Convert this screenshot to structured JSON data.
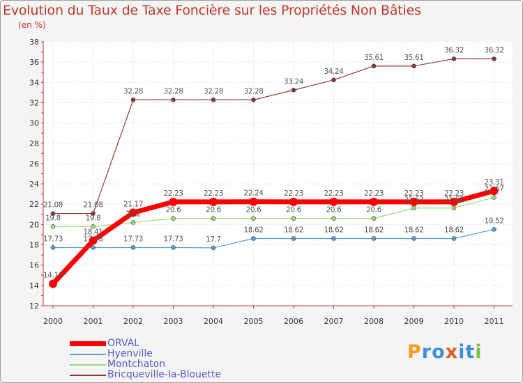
{
  "title": "Evolution du Taux de Taxe Foncière sur les Propriétés Non Bâties",
  "unit_label": "(en %)",
  "logo": "Proxiti",
  "chart_data": {
    "type": "line",
    "title": "Evolution du Taux de Taxe Foncière sur les Propriétés Non Bâties",
    "ylabel": "(en %)",
    "xlabel": "",
    "ylim": [
      12,
      38
    ],
    "yticks": [
      12,
      14,
      16,
      18,
      20,
      22,
      24,
      26,
      28,
      30,
      32,
      34,
      36,
      38
    ],
    "categories": [
      "2000",
      "2001",
      "2002",
      "2003",
      "2004",
      "2005",
      "2006",
      "2007",
      "2008",
      "2009",
      "2010",
      "2011"
    ],
    "grid": true,
    "series": [
      {
        "name": "ORVAL",
        "color": "#ff0000",
        "values": [
          14.16,
          18.41,
          21.17,
          22.23,
          22.23,
          22.24,
          22.23,
          22.23,
          22.23,
          22.23,
          22.23,
          23.31
        ],
        "labels": [
          "14.16",
          "18.41",
          "21.17",
          "22.23",
          "22.23",
          "22.24",
          "22.23",
          "22.23",
          "22.23",
          "22.23",
          "22.23",
          "23.31"
        ]
      },
      {
        "name": "Hyenville",
        "color": "#5a9fd4",
        "values": [
          17.73,
          17.73,
          17.73,
          17.73,
          17.7,
          18.62,
          18.62,
          18.62,
          18.62,
          18.62,
          18.62,
          19.52
        ],
        "labels": [
          "17.73",
          "17.73",
          "17.73",
          "17.73",
          "17.7",
          "18.62",
          "18.62",
          "18.62",
          "18.62",
          "18.62",
          "18.62",
          "19.52"
        ]
      },
      {
        "name": "Montchaton",
        "color": "#99dd77",
        "values": [
          19.8,
          19.8,
          20.2,
          20.6,
          20.6,
          20.6,
          20.6,
          20.6,
          20.6,
          21.62,
          21.62,
          22.67
        ],
        "labels": [
          "19.8",
          "19.8",
          "20.2",
          "20.6",
          "20.6",
          "20.6",
          "20.6",
          "20.6",
          "20.6",
          "21.62",
          "21.62",
          "22.67"
        ]
      },
      {
        "name": "Bricqueville-la-Blouette",
        "color": "#8b3a3a",
        "values": [
          21.08,
          21.08,
          32.28,
          32.28,
          32.28,
          32.28,
          33.24,
          34.24,
          35.61,
          35.61,
          36.32,
          36.32
        ],
        "labels": [
          "21.08",
          "21.08",
          "32.28",
          "32.28",
          "32.28",
          "32.28",
          "33.24",
          "34.24",
          "35.61",
          "35.61",
          "36.32",
          "36.32"
        ]
      }
    ]
  }
}
